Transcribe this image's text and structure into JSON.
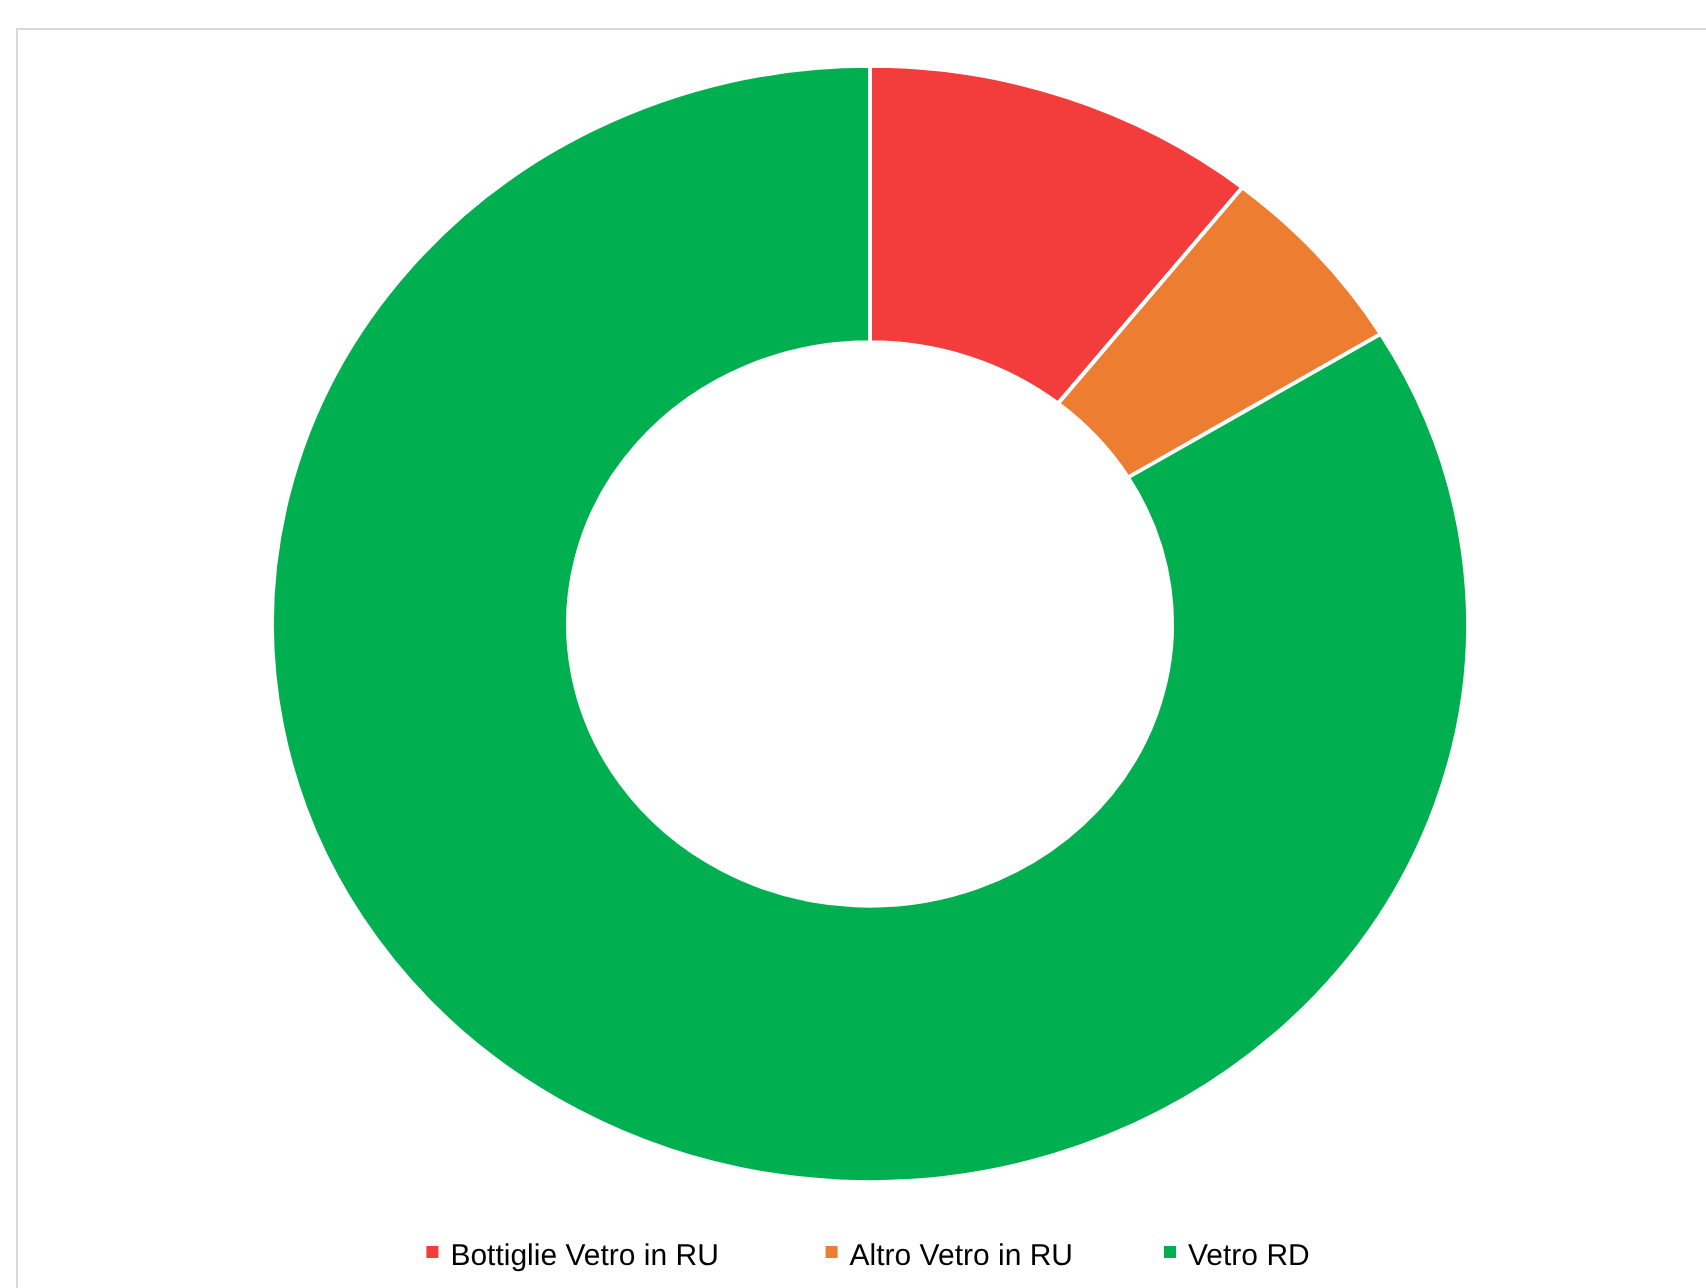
{
  "chart_data": {
    "type": "donut",
    "categories": [
      "Bottiglie Vetro in RU",
      "Altro Vetro in RU",
      "Vetro RD"
    ],
    "values": [
      10.7,
      5.6,
      83.7
    ],
    "colors": [
      "#f33c3c",
      "#ed7d31",
      "#00b050"
    ],
    "legend": "bottom"
  }
}
